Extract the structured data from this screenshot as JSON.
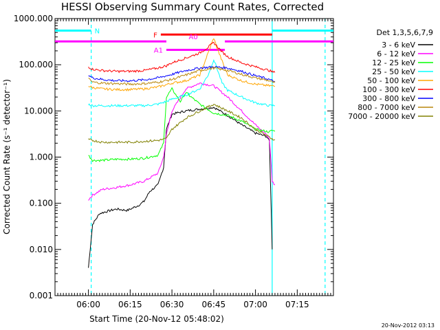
{
  "chart_data": {
    "type": "line",
    "title": "HESSI Observing Summary Count Rates, Corrected",
    "xlabel": "Start Time (20-Nov-12 05:48:02)",
    "ylabel": "Corrected Count Rate (s⁻¹ detector⁻¹)",
    "y_scale": "log",
    "ylim": [
      0.001,
      1000
    ],
    "xlim": [
      "05:48",
      "07:28"
    ],
    "x_tick_labels": [
      "06:00",
      "06:15",
      "06:30",
      "06:45",
      "07:00",
      "07:15"
    ],
    "y_tick_labels": [
      "0.001",
      "0.010",
      "0.100",
      "1.000",
      "10.000",
      "100.000",
      "1000.000"
    ],
    "grid": false,
    "legend_title": "Det 1,3,5,6,7,9",
    "legend_position": "right",
    "series": [
      {
        "name": "3 - 6 keV",
        "color": "#000000",
        "x": [
          "06:00",
          "06:01:30",
          "06:04",
          "06:06",
          "06:08",
          "06:10",
          "06:14",
          "06:18",
          "06:20",
          "06:22",
          "06:25",
          "06:27",
          "06:28",
          "06:30",
          "06:35",
          "06:40",
          "06:45",
          "06:50",
          "06:55",
          "07:00",
          "07:04",
          "07:05",
          "07:06"
        ],
        "y": [
          0.004,
          0.035,
          0.06,
          0.065,
          0.07,
          0.075,
          0.07,
          0.09,
          0.11,
          0.18,
          0.25,
          0.6,
          4,
          8.5,
          10,
          11,
          12,
          8,
          5,
          3.3,
          2.8,
          2.2,
          0.01
        ]
      },
      {
        "name": "6 - 12 keV",
        "color": "#ff00ff",
        "x": [
          "06:00",
          "06:01:30",
          "06:05",
          "06:10",
          "06:15",
          "06:20",
          "06:25",
          "06:27",
          "06:28",
          "06:30",
          "06:35",
          "06:40",
          "06:45",
          "06:50",
          "06:55",
          "07:00",
          "07:04",
          "07:05",
          "07:06",
          "07:07"
        ],
        "y": [
          0.12,
          0.15,
          0.2,
          0.22,
          0.25,
          0.3,
          0.45,
          1,
          3,
          10,
          30,
          40,
          35,
          20,
          10,
          5,
          3,
          2.5,
          0.3,
          0.25
        ]
      },
      {
        "name": "12 - 25 keV",
        "color": "#00ff00",
        "x": [
          "06:00",
          "06:01:30",
          "06:05",
          "06:10",
          "06:15",
          "06:20",
          "06:25",
          "06:27",
          "06:28",
          "06:30",
          "06:33",
          "06:35",
          "06:40",
          "06:45",
          "06:50",
          "06:55",
          "07:00",
          "07:05",
          "07:06",
          "07:07"
        ],
        "y": [
          1.1,
          0.85,
          0.85,
          0.9,
          0.9,
          0.95,
          1.1,
          2,
          20,
          30,
          16,
          25,
          14,
          9,
          8,
          6,
          4,
          3.5,
          3.8,
          3.6
        ]
      },
      {
        "name": "25 - 50 keV",
        "color": "#00ffff",
        "x": [
          "06:00",
          "06:01:30",
          "06:05",
          "06:10",
          "06:15",
          "06:20",
          "06:25",
          "06:28",
          "06:30",
          "06:35",
          "06:40",
          "06:43",
          "06:45",
          "06:46",
          "06:48",
          "06:50",
          "06:55",
          "07:00",
          "07:05",
          "07:06",
          "07:07"
        ],
        "y": [
          14,
          13,
          13,
          13,
          13,
          13,
          14,
          16,
          18,
          22,
          30,
          60,
          130,
          90,
          40,
          28,
          20,
          15,
          13,
          13,
          13
        ]
      },
      {
        "name": "50 - 100 keV",
        "color": "#ffa500",
        "x": [
          "06:00",
          "06:01:30",
          "06:05",
          "06:10",
          "06:15",
          "06:20",
          "06:25",
          "06:28",
          "06:30",
          "06:35",
          "06:40",
          "06:43",
          "06:45",
          "06:46",
          "06:48",
          "06:50",
          "06:55",
          "07:00",
          "07:05",
          "07:06",
          "07:07"
        ],
        "y": [
          35,
          32,
          30,
          29,
          29,
          30,
          33,
          37,
          40,
          45,
          60,
          180,
          380,
          250,
          120,
          60,
          45,
          38,
          35,
          35,
          34
        ]
      },
      {
        "name": "100 - 300 keV",
        "color": "#ff0000",
        "x": [
          "06:00",
          "06:01:30",
          "06:05",
          "06:10",
          "06:15",
          "06:20",
          "06:25",
          "06:28",
          "06:30",
          "06:35",
          "06:40",
          "06:43",
          "06:45",
          "06:46",
          "06:48",
          "06:50",
          "06:55",
          "07:00",
          "07:05",
          "07:06",
          "07:07"
        ],
        "y": [
          90,
          80,
          75,
          72,
          72,
          75,
          85,
          95,
          110,
          140,
          180,
          240,
          300,
          260,
          190,
          150,
          110,
          90,
          75,
          70,
          68
        ]
      },
      {
        "name": "300 - 800 keV",
        "color": "#0000ff",
        "x": [
          "06:00",
          "06:01:30",
          "06:05",
          "06:10",
          "06:15",
          "06:20",
          "06:25",
          "06:30",
          "06:35",
          "06:40",
          "06:45",
          "06:50",
          "06:55",
          "07:00",
          "07:05",
          "07:06",
          "07:07"
        ],
        "y": [
          60,
          52,
          48,
          45,
          45,
          47,
          52,
          62,
          75,
          85,
          90,
          85,
          72,
          58,
          48,
          45,
          44
        ]
      },
      {
        "name": "800 - 7000 keV",
        "color": "#b8860b",
        "x": [
          "06:00",
          "06:01:30",
          "06:05",
          "06:10",
          "06:15",
          "06:20",
          "06:25",
          "06:30",
          "06:35",
          "06:40",
          "06:45",
          "06:50",
          "06:55",
          "07:00",
          "07:05",
          "07:06",
          "07:07"
        ],
        "y": [
          50,
          42,
          40,
          39,
          38,
          39,
          42,
          48,
          60,
          75,
          85,
          75,
          62,
          52,
          45,
          42,
          41
        ]
      },
      {
        "name": "7000 - 20000 keV",
        "color": "#808000",
        "x": [
          "06:00",
          "06:01:30",
          "06:05",
          "06:10",
          "06:15",
          "06:20",
          "06:25",
          "06:28",
          "06:30",
          "06:35",
          "06:40",
          "06:45",
          "06:50",
          "06:55",
          "07:00",
          "07:05",
          "07:06",
          "07:07"
        ],
        "y": [
          2.4,
          2.3,
          2.1,
          2.1,
          2.1,
          2.2,
          2.3,
          2.5,
          4,
          7,
          10,
          14,
          10,
          7,
          4,
          2.7,
          2.5,
          2.4
        ]
      }
    ],
    "annotation_bars": [
      {
        "label": "N",
        "color": "#00ffff",
        "segments": [
          [
            "05:48",
            "06:01"
          ],
          [
            "07:06",
            "07:28"
          ]
        ],
        "y": 550
      },
      {
        "label": "F",
        "color": "#ff0000",
        "segments": [
          [
            "06:26",
            "07:06"
          ]
        ],
        "y": 450
      },
      {
        "label": "A0",
        "color": "#ff00ff",
        "segments": [
          [
            "05:48",
            "06:28"
          ],
          [
            "06:49",
            "07:28"
          ]
        ],
        "y": 320
      },
      {
        "label": "A1",
        "color": "#ff00ff",
        "segments": [
          [
            "06:28",
            "06:49"
          ]
        ],
        "y": 210
      }
    ],
    "vertical_lines": [
      {
        "x": "06:01",
        "color": "#00ffff",
        "style": "dashed"
      },
      {
        "x": "07:06",
        "color": "#00ffff",
        "style": "solid"
      },
      {
        "x": "07:25",
        "color": "#00ffff",
        "style": "dashed"
      }
    ]
  },
  "footer": {
    "timestamp": "20-Nov-2012 03:13"
  },
  "colors": {
    "background": "#ffffff",
    "axis": "#000000"
  }
}
